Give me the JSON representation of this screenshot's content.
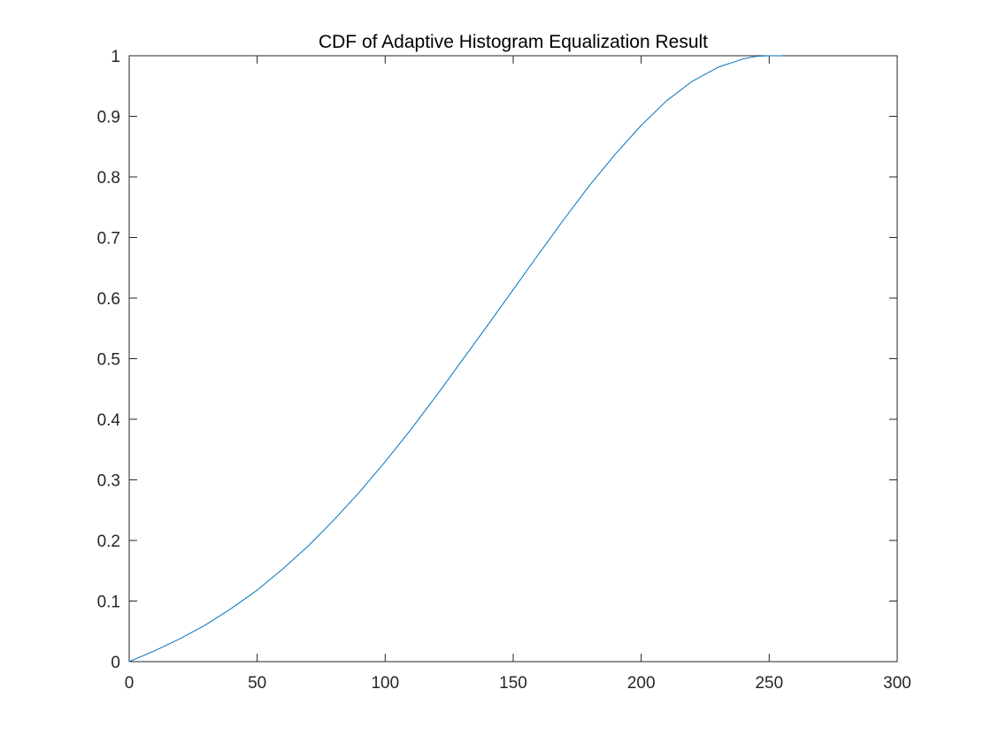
{
  "chart_data": {
    "type": "line",
    "title": "CDF of Adaptive Histogram Equalization Result",
    "xlabel": "",
    "ylabel": "",
    "xlim": [
      0,
      300
    ],
    "ylim": [
      0,
      1
    ],
    "xticks": [
      0,
      50,
      100,
      150,
      200,
      250,
      300
    ],
    "yticks": [
      0,
      0.1,
      0.2,
      0.3,
      0.4,
      0.5,
      0.6,
      0.7,
      0.8,
      0.9,
      1
    ],
    "xtick_labels": [
      "0",
      "50",
      "100",
      "150",
      "200",
      "250",
      "300"
    ],
    "ytick_labels": [
      "0",
      "0.1",
      "0.2",
      "0.3",
      "0.4",
      "0.5",
      "0.6",
      "0.7",
      "0.8",
      "0.9",
      "1"
    ],
    "grid": false,
    "line_color": "#0072BD",
    "series": [
      {
        "x": [
          0,
          10,
          20,
          30,
          40,
          50,
          60,
          70,
          80,
          90,
          100,
          110,
          120,
          130,
          140,
          150,
          160,
          170,
          180,
          190,
          200,
          210,
          220,
          230,
          240,
          245,
          250,
          255
        ],
        "values": [
          0,
          0.018,
          0.038,
          0.061,
          0.088,
          0.118,
          0.153,
          0.191,
          0.234,
          0.28,
          0.33,
          0.383,
          0.439,
          0.497,
          0.555,
          0.614,
          0.673,
          0.731,
          0.787,
          0.838,
          0.885,
          0.926,
          0.958,
          0.981,
          0.995,
          0.999,
          1.0,
          1.0
        ]
      }
    ]
  }
}
